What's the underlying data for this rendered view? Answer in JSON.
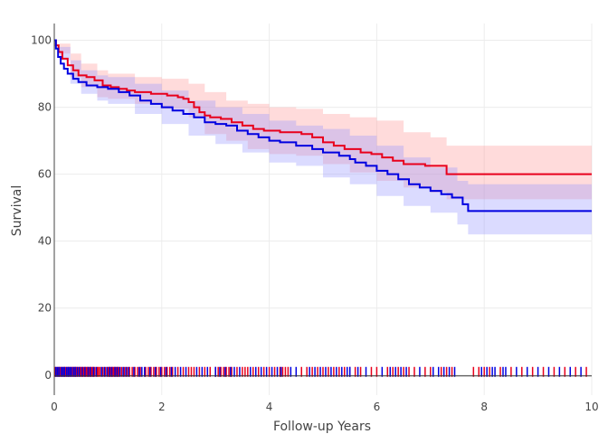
{
  "chart_data": {
    "type": "line",
    "title": "",
    "xlabel": "Follow-up Years",
    "ylabel": "Survival",
    "xlim": [
      0,
      10
    ],
    "ylim": [
      -6,
      105
    ],
    "xticks": [
      "0",
      "2",
      "4",
      "6",
      "8",
      "10"
    ],
    "yticks": [
      "0",
      "20",
      "40",
      "60",
      "80",
      "100"
    ],
    "grid": true,
    "legend": "none",
    "colors": {
      "red": "#e8001c",
      "blue": "#0000e0",
      "red_band": "#ff9999",
      "blue_band": "#9999ff"
    },
    "series": [
      {
        "color": "red",
        "steps": [
          [
            0,
            100
          ],
          [
            0.03,
            98.5
          ],
          [
            0.08,
            96.5
          ],
          [
            0.15,
            94.5
          ],
          [
            0.25,
            92.5
          ],
          [
            0.35,
            91
          ],
          [
            0.45,
            89.5
          ],
          [
            0.6,
            89
          ],
          [
            0.75,
            88
          ],
          [
            0.9,
            86.5
          ],
          [
            1.05,
            86
          ],
          [
            1.2,
            85.5
          ],
          [
            1.35,
            85
          ],
          [
            1.5,
            84.5
          ],
          [
            1.8,
            84
          ],
          [
            2.1,
            83.5
          ],
          [
            2.3,
            83
          ],
          [
            2.4,
            82.5
          ],
          [
            2.5,
            81.5
          ],
          [
            2.6,
            80
          ],
          [
            2.7,
            78.5
          ],
          [
            2.8,
            77.5
          ],
          [
            2.9,
            77
          ],
          [
            3.1,
            76.5
          ],
          [
            3.3,
            75.5
          ],
          [
            3.5,
            74.5
          ],
          [
            3.7,
            73.5
          ],
          [
            3.9,
            73
          ],
          [
            4.2,
            72.5
          ],
          [
            4.6,
            72
          ],
          [
            4.8,
            71
          ],
          [
            5.0,
            69.5
          ],
          [
            5.2,
            68.5
          ],
          [
            5.4,
            67.5
          ],
          [
            5.7,
            66.5
          ],
          [
            5.9,
            66
          ],
          [
            6.1,
            65
          ],
          [
            6.3,
            64
          ],
          [
            6.5,
            63
          ],
          [
            6.9,
            62.5
          ],
          [
            7.3,
            60
          ],
          [
            10,
            60
          ]
        ],
        "ci_upper": [
          [
            0,
            100
          ],
          [
            0.1,
            99
          ],
          [
            0.3,
            96
          ],
          [
            0.5,
            93
          ],
          [
            0.8,
            91
          ],
          [
            1.0,
            90
          ],
          [
            1.5,
            89
          ],
          [
            2.0,
            88.5
          ],
          [
            2.5,
            87
          ],
          [
            2.8,
            84.5
          ],
          [
            3.2,
            82
          ],
          [
            3.6,
            81
          ],
          [
            4.0,
            80
          ],
          [
            4.5,
            79.5
          ],
          [
            5.0,
            78
          ],
          [
            5.5,
            77
          ],
          [
            6.0,
            76
          ],
          [
            6.5,
            72.5
          ],
          [
            7.0,
            71
          ],
          [
            7.3,
            68.5
          ],
          [
            10,
            68.5
          ]
        ],
        "ci_lower": [
          [
            0,
            100
          ],
          [
            0.1,
            96
          ],
          [
            0.3,
            89
          ],
          [
            0.5,
            86
          ],
          [
            0.8,
            83
          ],
          [
            1.0,
            82.5
          ],
          [
            1.5,
            81
          ],
          [
            2.0,
            79.5
          ],
          [
            2.5,
            77
          ],
          [
            2.8,
            72
          ],
          [
            3.2,
            70
          ],
          [
            3.6,
            67.5
          ],
          [
            4.0,
            66
          ],
          [
            4.5,
            65.5
          ],
          [
            5.0,
            63
          ],
          [
            5.5,
            60.5
          ],
          [
            6.0,
            58
          ],
          [
            6.5,
            56
          ],
          [
            7.0,
            54.5
          ],
          [
            7.3,
            52.5
          ],
          [
            10,
            52.5
          ]
        ],
        "rug": [
          0.02,
          0.05,
          0.08,
          0.1,
          0.12,
          0.15,
          0.18,
          0.2,
          0.22,
          0.25,
          0.27,
          0.3,
          0.33,
          0.35,
          0.38,
          0.4,
          0.42,
          0.45,
          0.48,
          0.5,
          0.53,
          0.55,
          0.58,
          0.6,
          0.62,
          0.65,
          0.68,
          0.7,
          0.72,
          0.75,
          0.8,
          0.85,
          0.82,
          0.9,
          0.95,
          1.0,
          1.02,
          1.05,
          1.08,
          1.1,
          1.12,
          1.15,
          1.18,
          1.2,
          1.25,
          1.3,
          1.35,
          1.4,
          1.45,
          1.5,
          1.55,
          1.6,
          1.7,
          1.75,
          1.8,
          1.85,
          1.9,
          1.95,
          2.0,
          2.05,
          2.1,
          2.15,
          2.2,
          2.3,
          2.4,
          2.5,
          2.55,
          2.6,
          2.7,
          2.8,
          2.9,
          3.0,
          3.05,
          3.1,
          3.15,
          3.2,
          3.25,
          3.3,
          3.4,
          3.5,
          3.55,
          3.6,
          3.7,
          3.8,
          3.9,
          4.0,
          4.1,
          4.2,
          4.25,
          4.3,
          4.35,
          4.6,
          4.7,
          4.8,
          4.9,
          5.0,
          5.1,
          5.2,
          5.3,
          5.4,
          5.5,
          5.6,
          5.7,
          5.9,
          6.0,
          6.2,
          6.3,
          6.4,
          6.5,
          6.6,
          6.7,
          6.9,
          7.0,
          7.2,
          7.3,
          7.4,
          7.8,
          7.9,
          8.0,
          8.1,
          8.3,
          8.5,
          8.7,
          8.9,
          9.1,
          9.3,
          9.5,
          9.7,
          9.9
        ]
      },
      {
        "color": "blue",
        "steps": [
          [
            0,
            100
          ],
          [
            0.03,
            97.5
          ],
          [
            0.07,
            95
          ],
          [
            0.12,
            93
          ],
          [
            0.18,
            91.5
          ],
          [
            0.25,
            90
          ],
          [
            0.35,
            88.5
          ],
          [
            0.45,
            87.5
          ],
          [
            0.6,
            86.5
          ],
          [
            0.8,
            86
          ],
          [
            1.0,
            85.5
          ],
          [
            1.2,
            84.5
          ],
          [
            1.4,
            83.5
          ],
          [
            1.6,
            82
          ],
          [
            1.8,
            81
          ],
          [
            2.0,
            80
          ],
          [
            2.2,
            79
          ],
          [
            2.4,
            78
          ],
          [
            2.6,
            77
          ],
          [
            2.8,
            75.5
          ],
          [
            3.0,
            75
          ],
          [
            3.2,
            74.5
          ],
          [
            3.4,
            73
          ],
          [
            3.6,
            72
          ],
          [
            3.8,
            71
          ],
          [
            4.0,
            70
          ],
          [
            4.2,
            69.5
          ],
          [
            4.5,
            68.5
          ],
          [
            4.8,
            67.5
          ],
          [
            5.0,
            66.5
          ],
          [
            5.3,
            65.5
          ],
          [
            5.5,
            64.5
          ],
          [
            5.6,
            63.5
          ],
          [
            5.8,
            62.5
          ],
          [
            6.0,
            61
          ],
          [
            6.2,
            60
          ],
          [
            6.4,
            58.5
          ],
          [
            6.6,
            57
          ],
          [
            6.8,
            56
          ],
          [
            7.0,
            55
          ],
          [
            7.2,
            54
          ],
          [
            7.4,
            53
          ],
          [
            7.6,
            51
          ],
          [
            7.7,
            49
          ],
          [
            10,
            49
          ]
        ],
        "ci_upper": [
          [
            0,
            100
          ],
          [
            0.1,
            98
          ],
          [
            0.3,
            94
          ],
          [
            0.5,
            91
          ],
          [
            0.8,
            89.5
          ],
          [
            1.0,
            89
          ],
          [
            1.5,
            87
          ],
          [
            2.0,
            85
          ],
          [
            2.5,
            82
          ],
          [
            3.0,
            80
          ],
          [
            3.5,
            78
          ],
          [
            4.0,
            76
          ],
          [
            4.5,
            74.5
          ],
          [
            5.0,
            73.5
          ],
          [
            5.5,
            71.5
          ],
          [
            6.0,
            68.5
          ],
          [
            6.5,
            65
          ],
          [
            7.0,
            62
          ],
          [
            7.5,
            58
          ],
          [
            7.7,
            57
          ],
          [
            10,
            57
          ]
        ],
        "ci_lower": [
          [
            0,
            100
          ],
          [
            0.1,
            94
          ],
          [
            0.3,
            87
          ],
          [
            0.5,
            84
          ],
          [
            0.8,
            82
          ],
          [
            1.0,
            81
          ],
          [
            1.5,
            78
          ],
          [
            2.0,
            75
          ],
          [
            2.5,
            71.5
          ],
          [
            3.0,
            69
          ],
          [
            3.5,
            66.5
          ],
          [
            4.0,
            63.5
          ],
          [
            4.5,
            62.5
          ],
          [
            5.0,
            59
          ],
          [
            5.5,
            57
          ],
          [
            6.0,
            53.5
          ],
          [
            6.5,
            50.5
          ],
          [
            7.0,
            48.5
          ],
          [
            7.5,
            45
          ],
          [
            7.7,
            42
          ],
          [
            10,
            42
          ]
        ],
        "rug": [
          0.03,
          0.06,
          0.09,
          0.13,
          0.16,
          0.19,
          0.23,
          0.26,
          0.29,
          0.32,
          0.36,
          0.39,
          0.43,
          0.47,
          0.52,
          0.57,
          0.63,
          0.67,
          0.73,
          0.78,
          0.88,
          0.93,
          0.98,
          1.03,
          1.07,
          1.13,
          1.17,
          1.22,
          1.28,
          1.33,
          1.38,
          1.48,
          1.58,
          1.63,
          1.68,
          1.78,
          1.88,
          1.98,
          2.08,
          2.18,
          2.25,
          2.35,
          2.45,
          2.65,
          2.75,
          2.85,
          3.0,
          3.08,
          3.18,
          3.28,
          3.35,
          3.45,
          3.65,
          3.75,
          3.85,
          3.95,
          4.05,
          4.15,
          4.22,
          4.4,
          4.5,
          4.75,
          4.85,
          4.95,
          5.05,
          5.15,
          5.25,
          5.35,
          5.45,
          5.5,
          5.65,
          5.8,
          6.1,
          6.25,
          6.35,
          6.45,
          6.55,
          6.8,
          7.05,
          7.15,
          7.25,
          7.35,
          7.45,
          7.95,
          8.05,
          8.15,
          8.2,
          8.35,
          8.4,
          8.6,
          8.8,
          9.0,
          9.2,
          9.4,
          9.6,
          9.8
        ]
      }
    ]
  }
}
